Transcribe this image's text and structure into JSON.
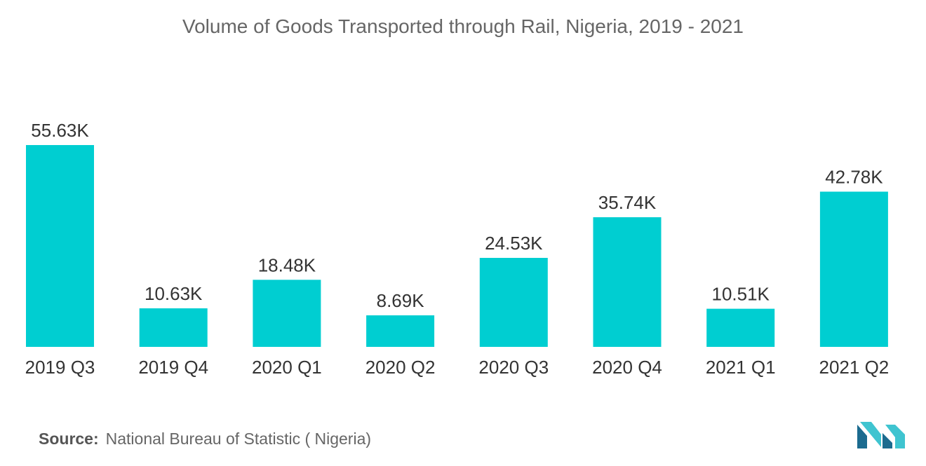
{
  "title": "Volume of Goods Transported through Rail, Nigeria, 2019 - 2021",
  "source": {
    "label": "Source:",
    "text": "National Bureau of Statistic ( Nigeria)"
  },
  "logo_icon": "mordor-intelligence-logo-icon",
  "colors": {
    "bar": "#00CED1",
    "logo_dark": "#1B6B8F",
    "logo_light": "#3FC4D0"
  },
  "chart_data": {
    "type": "bar",
    "title": "Volume of Goods Transported through Rail, Nigeria, 2019 - 2021",
    "categories": [
      "2019 Q3",
      "2019 Q4",
      "2020 Q1",
      "2020 Q2",
      "2020 Q3",
      "2020 Q4",
      "2021 Q1",
      "2021 Q2"
    ],
    "values": [
      55630,
      10630,
      18480,
      8690,
      24530,
      35740,
      10510,
      42780
    ],
    "data_labels": [
      "55.63K",
      "10.63K",
      "18.48K",
      "8.69K",
      "24.53K",
      "35.74K",
      "10.51K",
      "42.78K"
    ],
    "xlabel": "",
    "ylabel": "",
    "ylim": [
      0,
      55630
    ],
    "grid": false,
    "legend": "none"
  }
}
